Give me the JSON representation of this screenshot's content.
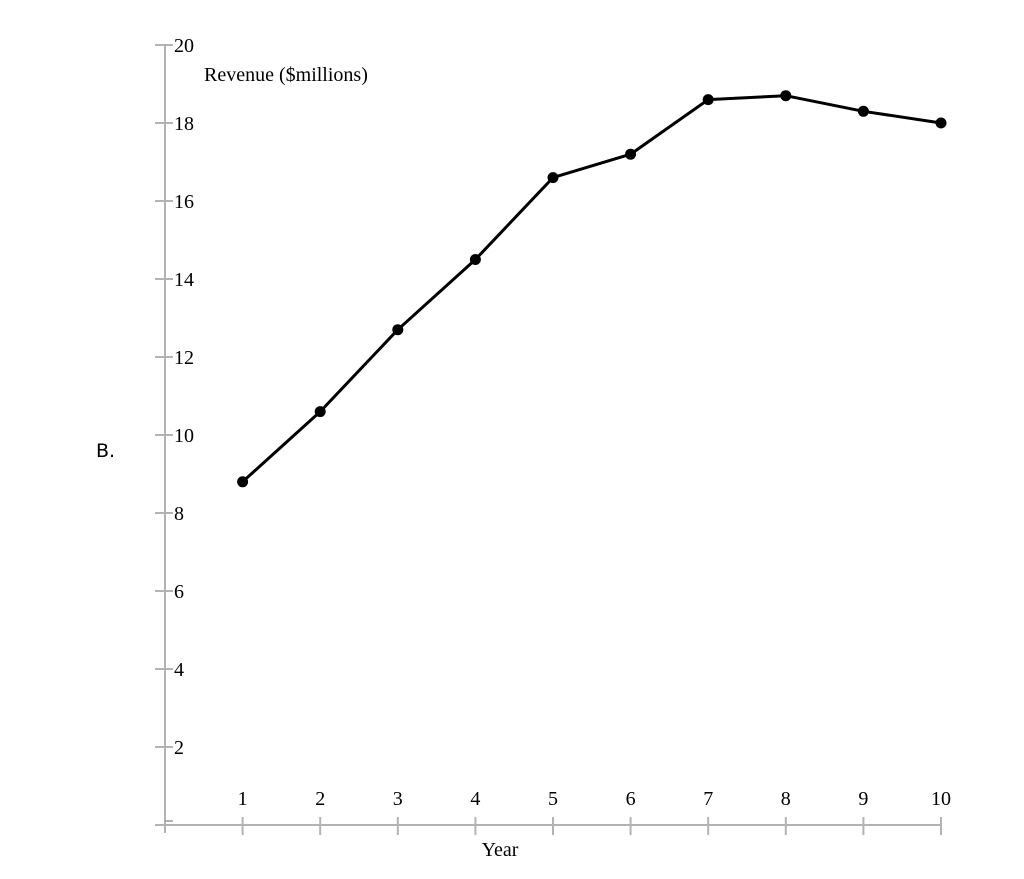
{
  "option": {
    "label": "B."
  },
  "chart_data": {
    "type": "line",
    "title": "",
    "xlabel": "Year",
    "ylabel": "Revenue ($millions)",
    "x": [
      1,
      2,
      3,
      4,
      5,
      6,
      7,
      8,
      9,
      10
    ],
    "series": [
      {
        "name": "Revenue",
        "values": [
          8.8,
          10.6,
          12.7,
          14.5,
          16.6,
          17.2,
          18.6,
          18.7,
          18.3,
          18.0
        ]
      }
    ],
    "x_ticks": [
      "1",
      "2",
      "3",
      "4",
      "5",
      "6",
      "7",
      "8",
      "9",
      "10"
    ],
    "y_ticks": [
      "2",
      "4",
      "6",
      "8",
      "10",
      "12",
      "14",
      "16",
      "18",
      "20"
    ],
    "xlim": [
      0,
      10
    ],
    "ylim": [
      0,
      20
    ],
    "grid": false,
    "legend": null,
    "markers": true,
    "colors": {
      "line": "#000000",
      "axis": "#b3b3b3",
      "text": "#000000"
    }
  }
}
